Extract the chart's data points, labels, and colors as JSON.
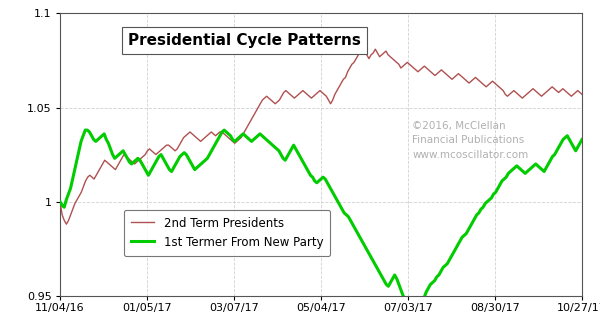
{
  "title": "Presidential Cycle Patterns",
  "legend_line1": "2nd Term Presidents",
  "legend_line2": "1st Termer From New Party",
  "watermark_line1": "©2016, McClellan",
  "watermark_line2": "Financial Publications",
  "watermark_line3": "www.mcoscillator.com",
  "color_2nd": "#b05050",
  "color_1st": "#00cc00",
  "ylim": [
    0.95,
    1.1
  ],
  "yticks": [
    0.95,
    1.0,
    1.05,
    1.1
  ],
  "ytick_labels": [
    "0.95",
    "1",
    "1.05",
    "1.1"
  ],
  "xtick_labels": [
    "11/04/16",
    "01/05/17",
    "03/07/17",
    "05/04/17",
    "07/03/17",
    "08/30/17",
    "10/27/17"
  ],
  "bg_color": "#ffffff",
  "plot_bg_color": "#ffffff",
  "grid_color": "#cccccc",
  "line1_lw": 1.0,
  "line2_lw": 2.2,
  "title_fontsize": 11,
  "tick_fontsize": 8,
  "legend_fontsize": 8.5,
  "watermark_color": "#b0b0b0",
  "series_2nd": [
    1.0,
    0.993,
    0.99,
    0.988,
    0.99,
    0.993,
    0.996,
    0.999,
    1.001,
    1.003,
    1.005,
    1.008,
    1.011,
    1.013,
    1.014,
    1.013,
    1.012,
    1.014,
    1.016,
    1.018,
    1.02,
    1.022,
    1.021,
    1.02,
    1.019,
    1.018,
    1.017,
    1.019,
    1.021,
    1.023,
    1.025,
    1.024,
    1.023,
    1.022,
    1.021,
    1.02,
    1.021,
    1.022,
    1.023,
    1.024,
    1.025,
    1.027,
    1.028,
    1.027,
    1.026,
    1.025,
    1.026,
    1.027,
    1.028,
    1.029,
    1.03,
    1.03,
    1.029,
    1.028,
    1.027,
    1.028,
    1.03,
    1.032,
    1.034,
    1.035,
    1.036,
    1.037,
    1.036,
    1.035,
    1.034,
    1.033,
    1.032,
    1.033,
    1.034,
    1.035,
    1.036,
    1.037,
    1.036,
    1.035,
    1.036,
    1.037,
    1.037,
    1.036,
    1.035,
    1.034,
    1.033,
    1.032,
    1.031,
    1.032,
    1.033,
    1.034,
    1.036,
    1.038,
    1.04,
    1.042,
    1.044,
    1.046,
    1.048,
    1.05,
    1.052,
    1.054,
    1.055,
    1.056,
    1.055,
    1.054,
    1.053,
    1.052,
    1.053,
    1.054,
    1.056,
    1.058,
    1.059,
    1.058,
    1.057,
    1.056,
    1.055,
    1.056,
    1.057,
    1.058,
    1.059,
    1.058,
    1.057,
    1.056,
    1.055,
    1.056,
    1.057,
    1.058,
    1.059,
    1.058,
    1.057,
    1.056,
    1.054,
    1.052,
    1.054,
    1.057,
    1.059,
    1.061,
    1.063,
    1.065,
    1.066,
    1.069,
    1.071,
    1.073,
    1.074,
    1.076,
    1.078,
    1.079,
    1.08,
    1.079,
    1.078,
    1.076,
    1.078,
    1.079,
    1.081,
    1.079,
    1.077,
    1.078,
    1.079,
    1.08,
    1.078,
    1.077,
    1.076,
    1.075,
    1.074,
    1.073,
    1.071,
    1.072,
    1.073,
    1.074,
    1.073,
    1.072,
    1.071,
    1.07,
    1.069,
    1.07,
    1.071,
    1.072,
    1.071,
    1.07,
    1.069,
    1.068,
    1.067,
    1.068,
    1.069,
    1.07,
    1.069,
    1.068,
    1.067,
    1.066,
    1.065,
    1.066,
    1.067,
    1.068,
    1.067,
    1.066,
    1.065,
    1.064,
    1.063,
    1.064,
    1.065,
    1.066,
    1.065,
    1.064,
    1.063,
    1.062,
    1.061,
    1.062,
    1.063,
    1.064,
    1.063,
    1.062,
    1.061,
    1.06,
    1.059,
    1.057,
    1.056,
    1.057,
    1.058,
    1.059,
    1.058,
    1.057,
    1.056,
    1.055,
    1.056,
    1.057,
    1.058,
    1.059,
    1.06,
    1.059,
    1.058,
    1.057,
    1.056,
    1.057,
    1.058,
    1.059,
    1.06,
    1.061,
    1.06,
    1.059,
    1.058,
    1.059,
    1.06,
    1.059,
    1.058,
    1.057,
    1.056,
    1.057,
    1.058,
    1.059,
    1.058,
    1.057
  ],
  "series_1st": [
    1.0,
    0.998,
    0.997,
    1.001,
    1.004,
    1.007,
    1.012,
    1.017,
    1.022,
    1.027,
    1.032,
    1.035,
    1.038,
    1.038,
    1.037,
    1.035,
    1.033,
    1.032,
    1.033,
    1.034,
    1.035,
    1.036,
    1.033,
    1.031,
    1.028,
    1.025,
    1.023,
    1.024,
    1.025,
    1.026,
    1.027,
    1.025,
    1.023,
    1.021,
    1.02,
    1.021,
    1.022,
    1.023,
    1.022,
    1.02,
    1.018,
    1.016,
    1.014,
    1.016,
    1.018,
    1.02,
    1.022,
    1.024,
    1.025,
    1.023,
    1.021,
    1.019,
    1.017,
    1.016,
    1.018,
    1.02,
    1.022,
    1.024,
    1.025,
    1.026,
    1.025,
    1.023,
    1.021,
    1.019,
    1.017,
    1.018,
    1.019,
    1.02,
    1.021,
    1.022,
    1.023,
    1.025,
    1.027,
    1.029,
    1.031,
    1.033,
    1.035,
    1.037,
    1.038,
    1.037,
    1.036,
    1.035,
    1.033,
    1.032,
    1.033,
    1.034,
    1.035,
    1.036,
    1.035,
    1.034,
    1.033,
    1.032,
    1.033,
    1.034,
    1.035,
    1.036,
    1.035,
    1.034,
    1.033,
    1.032,
    1.031,
    1.03,
    1.029,
    1.028,
    1.027,
    1.025,
    1.023,
    1.022,
    1.024,
    1.026,
    1.028,
    1.03,
    1.028,
    1.026,
    1.024,
    1.022,
    1.02,
    1.018,
    1.016,
    1.014,
    1.013,
    1.011,
    1.01,
    1.011,
    1.012,
    1.013,
    1.012,
    1.01,
    1.008,
    1.006,
    1.004,
    1.002,
    1.0,
    0.998,
    0.996,
    0.994,
    0.993,
    0.992,
    0.99,
    0.988,
    0.986,
    0.984,
    0.982,
    0.98,
    0.978,
    0.976,
    0.974,
    0.972,
    0.97,
    0.968,
    0.966,
    0.964,
    0.962,
    0.96,
    0.958,
    0.956,
    0.955,
    0.957,
    0.959,
    0.961,
    0.959,
    0.956,
    0.953,
    0.95,
    0.948,
    0.946,
    0.945,
    0.943,
    0.942,
    0.941,
    0.943,
    0.945,
    0.947,
    0.949,
    0.952,
    0.954,
    0.956,
    0.957,
    0.958,
    0.96,
    0.961,
    0.963,
    0.965,
    0.966,
    0.967,
    0.969,
    0.971,
    0.973,
    0.975,
    0.977,
    0.979,
    0.981,
    0.982,
    0.983,
    0.985,
    0.987,
    0.989,
    0.991,
    0.993,
    0.994,
    0.996,
    0.997,
    0.999,
    1.0,
    1.001,
    1.002,
    1.004,
    1.005,
    1.007,
    1.009,
    1.011,
    1.012,
    1.013,
    1.015,
    1.016,
    1.017,
    1.018,
    1.019,
    1.018,
    1.017,
    1.016,
    1.015,
    1.016,
    1.017,
    1.018,
    1.019,
    1.02,
    1.019,
    1.018,
    1.017,
    1.016,
    1.018,
    1.02,
    1.022,
    1.024,
    1.025,
    1.027,
    1.029,
    1.031,
    1.033,
    1.034,
    1.035,
    1.033,
    1.031,
    1.029,
    1.027,
    1.029,
    1.031,
    1.033
  ]
}
